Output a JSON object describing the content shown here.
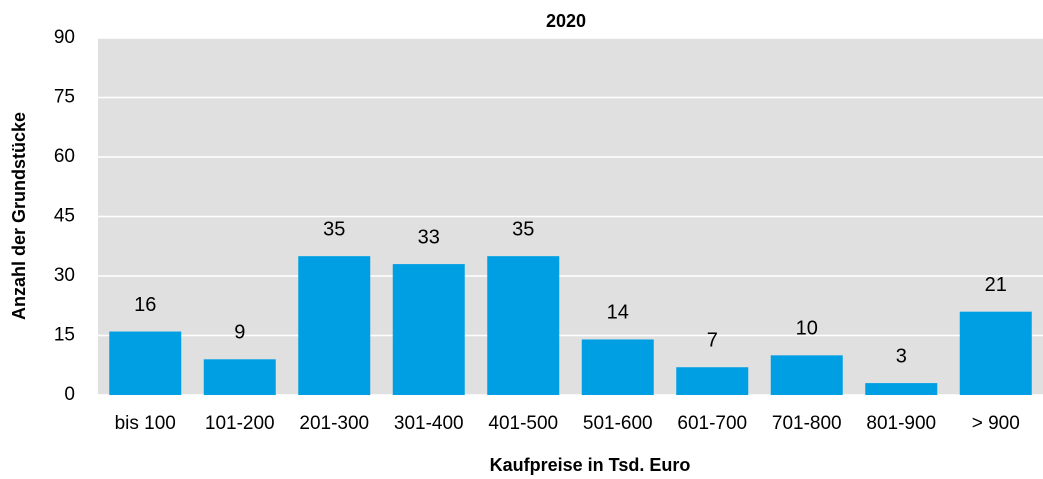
{
  "chart_data": {
    "type": "bar",
    "title": "2020",
    "x_label": "Kaufpreise in Tsd. Euro",
    "y_label": "Anzahl der Grundstücke",
    "categories": [
      "bis 100",
      "101-200",
      "201-300",
      "301-400",
      "401-500",
      "501-600",
      "601-700",
      "701-800",
      "801-900",
      "> 900"
    ],
    "values": [
      16,
      9,
      35,
      33,
      35,
      14,
      7,
      10,
      3,
      21
    ],
    "color": "#009fe3",
    "ylim": [
      0,
      90
    ],
    "yticks": [
      0,
      15,
      30,
      45,
      60,
      75,
      90
    ],
    "grid": true
  }
}
